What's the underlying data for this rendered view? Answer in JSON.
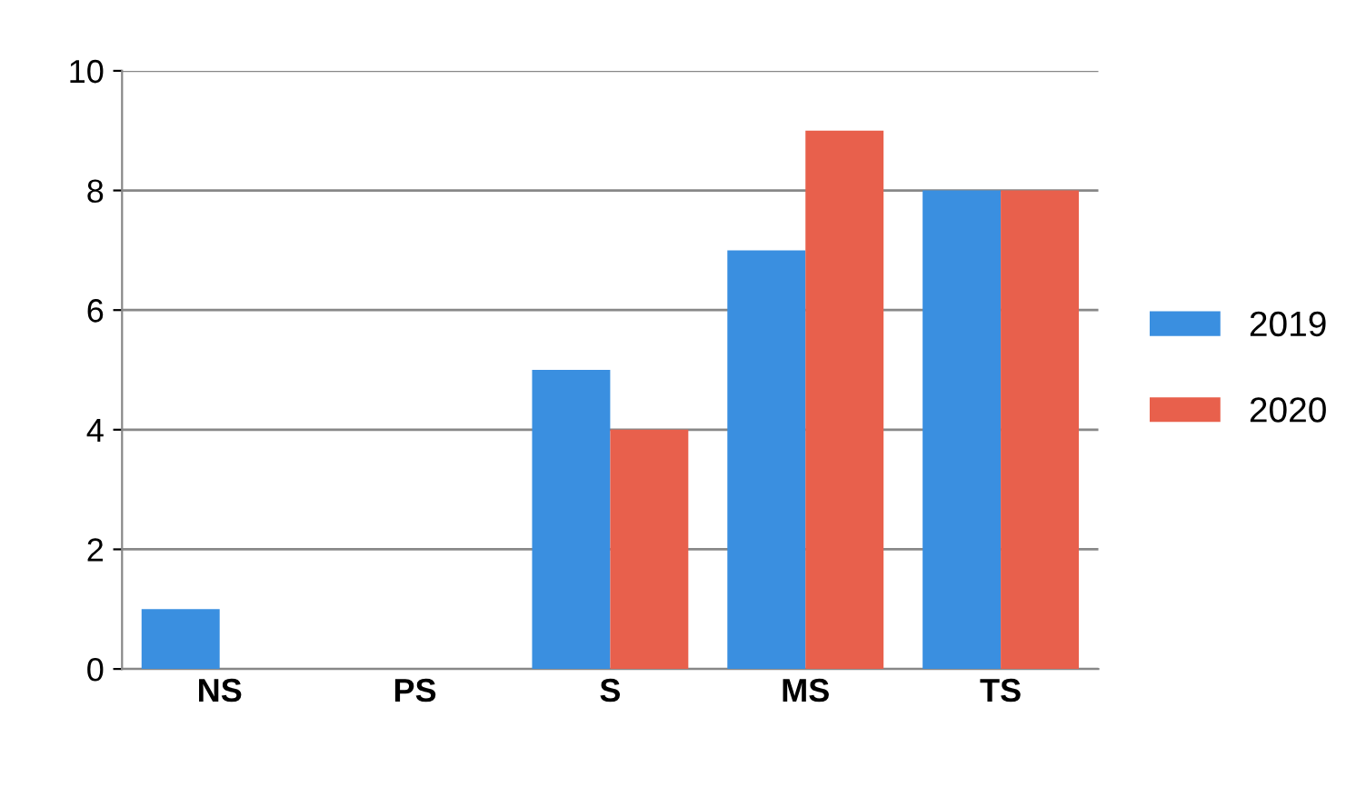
{
  "chart_data": {
    "type": "bar",
    "categories": [
      "NS",
      "PS",
      "S",
      "MS",
      "TS"
    ],
    "series": [
      {
        "name": "2019",
        "color": "#3a8fe0",
        "values": [
          1,
          0,
          5,
          7,
          8
        ]
      },
      {
        "name": "2020",
        "color": "#e8604c",
        "values": [
          0,
          0,
          4,
          9,
          8
        ]
      }
    ],
    "ylim": [
      0,
      10
    ],
    "yticks": [
      0,
      2,
      4,
      6,
      8,
      10
    ],
    "grid": "y",
    "legend": "right"
  }
}
